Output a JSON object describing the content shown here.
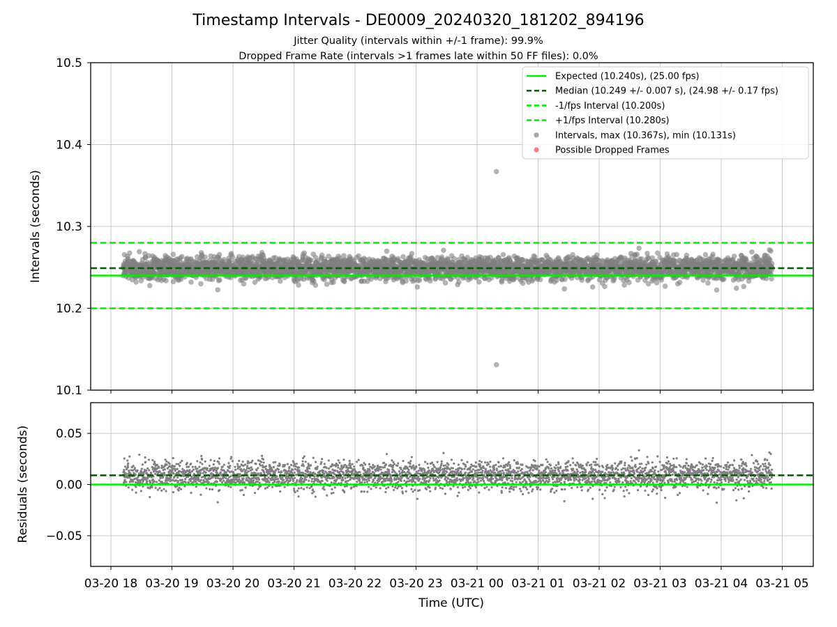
{
  "title": "Timestamp Intervals - DE0009_20240320_181202_894196",
  "subtitle_lines": [
    "Jitter Quality (intervals within +/-1 frame): 99.9%",
    "Dropped Frame Rate (intervals >1 frames late within 50 FF files): 0.0%"
  ],
  "colors": {
    "expected": "#00ee00",
    "median": "#006400",
    "fps_bounds": "#00ee00",
    "intervals": "#808080",
    "dropped": "#ff4444"
  },
  "chart_data": [
    {
      "type": "scatter",
      "xlabel": "",
      "ylabel": "Intervals (seconds)",
      "ylim": [
        10.1,
        10.5
      ],
      "yticks": [
        "10.1",
        "10.2",
        "10.3",
        "10.4",
        "10.5"
      ],
      "grid": true,
      "legend_position": "top-right",
      "legend": [
        "Expected (10.240s), (25.00 fps)",
        "Median (10.249 +/- 0.007 s), (24.98 +/- 0.17 fps)",
        "-1/fps Interval (10.200s)",
        "+1/fps Interval (10.280s)",
        "Intervals, max (10.367s), min (10.131s)",
        "Possible Dropped Frames"
      ],
      "reference_lines": [
        {
          "name": "Expected",
          "y": 10.24,
          "style": "solid"
        },
        {
          "name": "Median",
          "y": 10.249,
          "style": "dashed"
        },
        {
          "name": "-1/fps Interval",
          "y": 10.2,
          "style": "dashed"
        },
        {
          "name": "+1/fps Interval",
          "y": 10.28,
          "style": "dashed"
        }
      ],
      "x_range": [
        "2024-03-20 18:12",
        "2024-03-21 04:50"
      ],
      "median": 10.249,
      "std": 0.007,
      "max": 10.367,
      "min": 10.131,
      "highlighted_points": [
        {
          "x": "2024-03-21 00:19",
          "y": 10.367
        },
        {
          "x": "2024-03-21 00:19",
          "y": 10.131
        }
      ],
      "dropped_frames": []
    },
    {
      "type": "scatter",
      "xlabel": "Time (UTC)",
      "ylabel": "Residuals (seconds)",
      "ylim": [
        -0.08,
        0.08
      ],
      "yticks": [
        "−0.05",
        "0.00",
        "0.05"
      ],
      "grid": true,
      "reference_lines": [
        {
          "name": "Expected",
          "y": 0.0,
          "style": "solid"
        },
        {
          "name": "Median",
          "y": 0.009,
          "style": "dashed"
        }
      ],
      "x_range": [
        "2024-03-20 18:12",
        "2024-03-21 04:50"
      ],
      "xticks": [
        "03-20 18",
        "03-20 19",
        "03-20 20",
        "03-20 21",
        "03-20 22",
        "03-20 23",
        "03-21 00",
        "03-21 01",
        "03-21 02",
        "03-21 03",
        "03-21 04",
        "03-21 05"
      ]
    }
  ]
}
